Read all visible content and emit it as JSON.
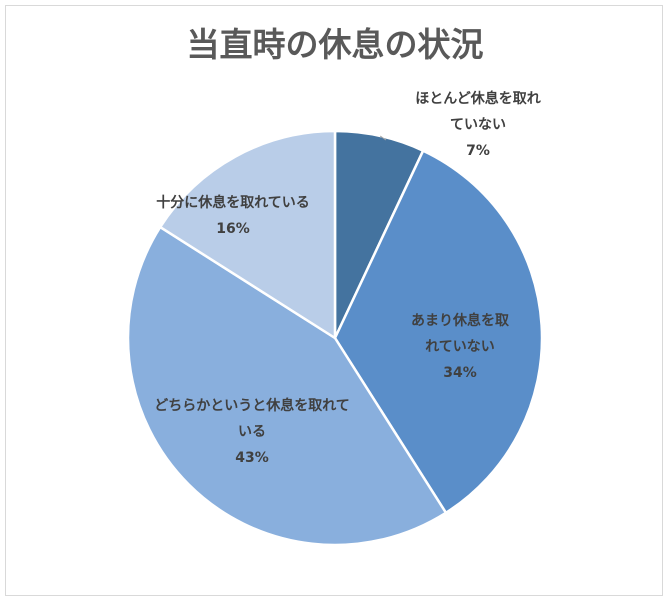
{
  "chart_data": {
    "type": "pie",
    "title": "当直時の休息の状況",
    "categories": [
      "ほとんど休息を取れていない",
      "あまり休息を取れていない",
      "どちらかというと休息を取れている",
      "十分に休息を取れている"
    ],
    "values": [
      7,
      34,
      43,
      16
    ],
    "value_labels": [
      "7%",
      "34%",
      "43%",
      "16%"
    ],
    "colors": [
      "#44739f",
      "#5a8ec9",
      "#89afdd",
      "#b9cde8"
    ]
  }
}
